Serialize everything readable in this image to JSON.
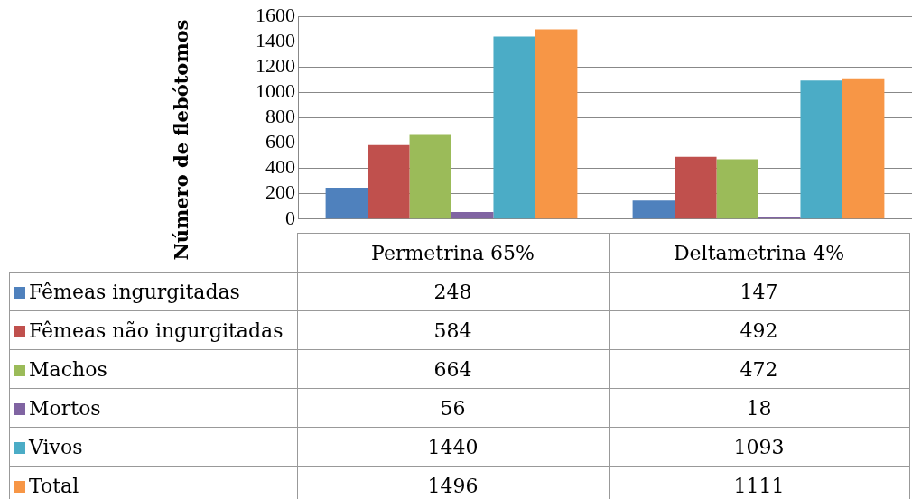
{
  "chart_data": {
    "type": "bar",
    "ylabel": "Número de flebótomos",
    "categories": [
      "Permetrina 65%",
      "Deltametrina 4%"
    ],
    "series": [
      {
        "name": "Fêmeas ingurgitadas",
        "color": "#4f81bd",
        "values": [
          248,
          147
        ]
      },
      {
        "name": "Fêmeas não ingurgitadas",
        "color": "#c0504d",
        "values": [
          584,
          492
        ]
      },
      {
        "name": "Machos",
        "color": "#9bbb59",
        "values": [
          664,
          472
        ]
      },
      {
        "name": "Mortos",
        "color": "#8064a2",
        "values": [
          56,
          18
        ]
      },
      {
        "name": "Vivos",
        "color": "#4bacc6",
        "values": [
          1440,
          1093
        ]
      },
      {
        "name": "Total",
        "color": "#f79646",
        "values": [
          1496,
          1111
        ]
      }
    ],
    "ylim": [
      0,
      1600
    ],
    "yticks": [
      0,
      200,
      400,
      600,
      800,
      1000,
      1200,
      1400,
      1600
    ],
    "grid": "y",
    "legend": "bottom left",
    "data_labels": true
  }
}
